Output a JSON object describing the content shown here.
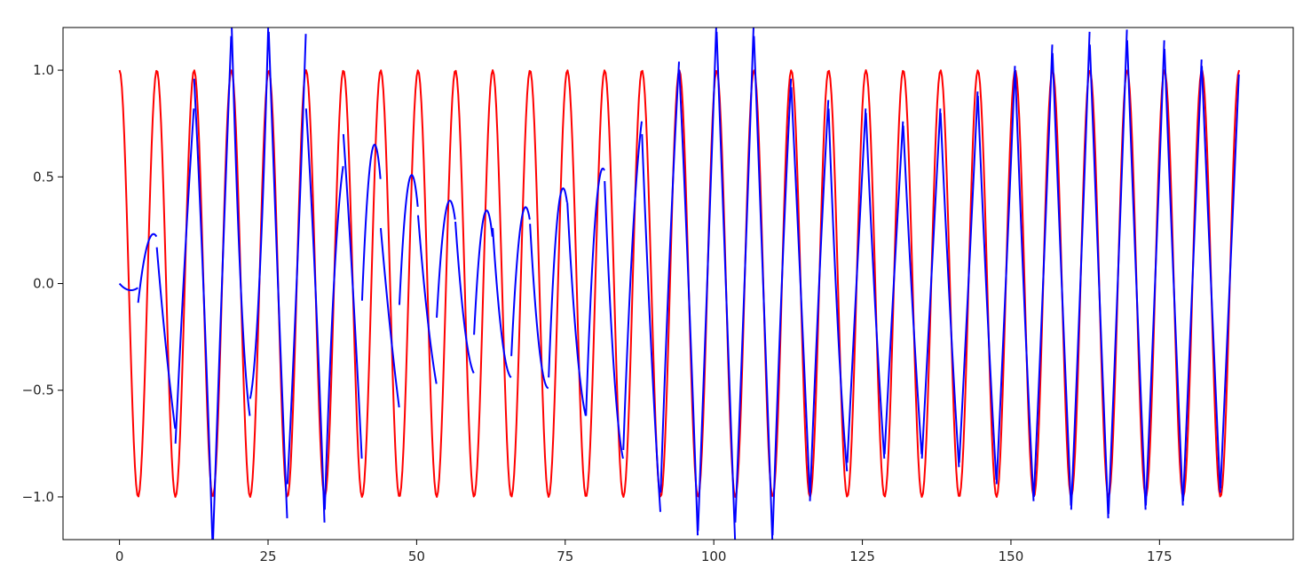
{
  "chart_data": {
    "type": "line",
    "title": "",
    "xlabel": "",
    "ylabel": "",
    "xlim": [
      -9.5,
      197.5
    ],
    "ylim": [
      -1.2,
      1.2
    ],
    "xticks": [
      0,
      25,
      50,
      75,
      100,
      125,
      150,
      175
    ],
    "xtick_labels": [
      "0",
      "25",
      "50",
      "75",
      "100",
      "125",
      "150",
      "175"
    ],
    "yticks": [
      -1.0,
      -0.5,
      0.0,
      0.5,
      1.0
    ],
    "ytick_labels": [
      "−1.0",
      "−0.5",
      "0.0",
      "0.5",
      "1.0"
    ],
    "grid": false,
    "legend": null,
    "series": [
      {
        "color": "#ff0000",
        "description": "cosine reference, y = cos(2*pi*x/6.28), x from 0 to 188.4",
        "period": 6.28,
        "x_start": 0,
        "x_end": 188.4
      },
      {
        "color": "#0000ff",
        "description": "segmented prediction; each segment spans 3.14 x-units, values at segment start, mid and end",
        "segment_length": 3.14,
        "segment_points": [
          [
            0.0,
            -0.03,
            -0.02
          ],
          [
            -0.09,
            0.18,
            0.22
          ],
          [
            0.17,
            -0.3,
            -0.68
          ],
          [
            -0.75,
            0.1,
            0.82
          ],
          [
            0.96,
            0.0,
            -1.22
          ],
          [
            -1.24,
            0.0,
            1.16
          ],
          [
            1.25,
            0.0,
            -0.62
          ],
          [
            -0.54,
            0.0,
            1.25
          ],
          [
            1.18,
            0.0,
            -1.1
          ],
          [
            -0.94,
            0.0,
            1.17
          ],
          [
            0.82,
            0.0,
            -1.12
          ],
          [
            -1.06,
            0.0,
            0.55
          ],
          [
            0.7,
            0.0,
            -0.82
          ],
          [
            -0.08,
            0.6,
            0.49
          ],
          [
            0.26,
            -0.2,
            -0.58
          ],
          [
            -0.1,
            0.47,
            0.36
          ],
          [
            0.32,
            -0.15,
            -0.47
          ],
          [
            -0.16,
            0.34,
            0.3
          ],
          [
            0.29,
            -0.2,
            -0.42
          ],
          [
            -0.24,
            0.3,
            0.22
          ],
          [
            0.26,
            -0.25,
            -0.44
          ],
          [
            -0.34,
            0.27,
            0.3
          ],
          [
            0.28,
            -0.3,
            -0.49
          ],
          [
            -0.44,
            0.33,
            0.38
          ],
          [
            0.38,
            -0.28,
            -0.62
          ],
          [
            -0.62,
            0.3,
            0.53
          ],
          [
            0.48,
            -0.4,
            -0.82
          ],
          [
            -0.78,
            0.2,
            0.76
          ],
          [
            0.7,
            -0.3,
            -1.07
          ],
          [
            -0.98,
            0.15,
            1.04
          ],
          [
            1.0,
            0.0,
            -1.18
          ],
          [
            -1.16,
            0.0,
            1.22
          ],
          [
            1.18,
            0.0,
            -1.2
          ],
          [
            -1.12,
            0.0,
            1.22
          ],
          [
            1.16,
            0.0,
            -1.2
          ],
          [
            -1.18,
            0.0,
            0.96
          ],
          [
            0.92,
            0.0,
            -0.98
          ],
          [
            -1.02,
            0.0,
            0.86
          ],
          [
            0.82,
            -0.2,
            -0.88
          ],
          [
            -0.84,
            0.0,
            0.82
          ],
          [
            0.8,
            -0.1,
            -0.82
          ],
          [
            -0.8,
            0.0,
            0.76
          ],
          [
            0.74,
            -0.1,
            -0.8
          ],
          [
            -0.82,
            0.0,
            0.82
          ],
          [
            0.8,
            -0.1,
            -0.86
          ],
          [
            -0.84,
            0.0,
            0.9
          ],
          [
            0.88,
            -0.1,
            -0.92
          ],
          [
            -0.94,
            0.0,
            1.02
          ],
          [
            1.0,
            -0.1,
            -1.02
          ],
          [
            -1.0,
            0.0,
            1.12
          ],
          [
            1.08,
            0.0,
            -1.04
          ],
          [
            -1.06,
            0.0,
            1.18
          ],
          [
            1.12,
            0.0,
            -1.1
          ],
          [
            -1.08,
            0.0,
            1.19
          ],
          [
            1.14,
            0.0,
            -1.06
          ],
          [
            -1.04,
            0.0,
            1.14
          ],
          [
            1.1,
            0.0,
            -1.04
          ],
          [
            -1.02,
            0.0,
            1.05
          ],
          [
            1.02,
            0.0,
            -0.98
          ],
          [
            -0.96,
            0.0,
            0.98
          ]
        ]
      }
    ]
  }
}
